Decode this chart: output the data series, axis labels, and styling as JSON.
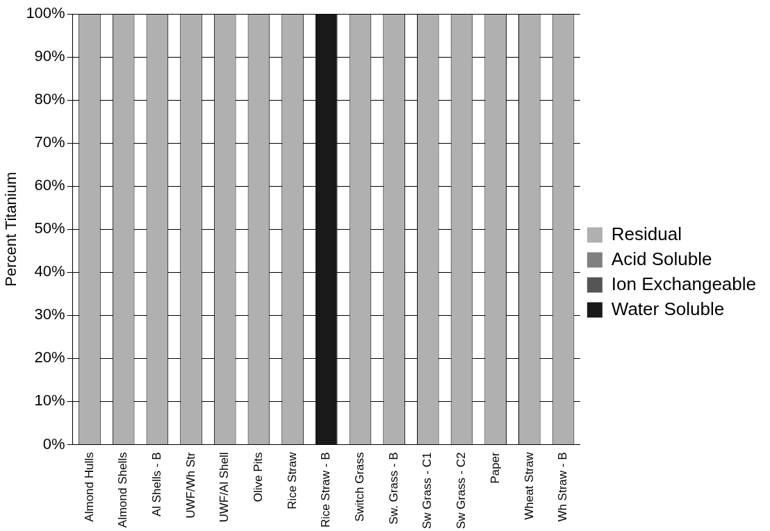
{
  "chart_data": {
    "type": "bar",
    "ylabel": "Percent Titanium",
    "categories": [
      "Almond Hulls",
      "Almond Shells",
      "Al Shells - B",
      "UWF/Wh Str",
      "UWF/Al Shell",
      "Olive Pits",
      "Rice Straw",
      "Rice Straw - B",
      "Switch Grass",
      "Sw. Grass - B",
      "Sw Grass - C1",
      "Sw Grass - C2",
      "Paper",
      "Wheat Straw",
      "Wh Straw - B"
    ],
    "stacked": true,
    "series": [
      {
        "name": "Residual",
        "color": "#b0b0b0",
        "values": [
          100,
          100,
          100,
          100,
          100,
          100,
          100,
          0,
          100,
          100,
          100,
          100,
          100,
          100,
          100
        ]
      },
      {
        "name": "Acid Soluble",
        "color": "#808080",
        "values": [
          0,
          0,
          0,
          0,
          0,
          0,
          0,
          0,
          0,
          0,
          0,
          0,
          0,
          0,
          0
        ]
      },
      {
        "name": "Ion Exchangeable",
        "color": "#555555",
        "values": [
          0,
          0,
          0,
          0,
          0,
          0,
          0,
          0,
          0,
          0,
          0,
          0,
          0,
          0,
          0
        ]
      },
      {
        "name": "Water Soluble",
        "color": "#1a1a1a",
        "values": [
          0,
          0,
          0,
          0,
          0,
          0,
          0,
          100,
          0,
          0,
          0,
          0,
          0,
          0,
          0
        ]
      }
    ],
    "ylim": [
      0,
      100
    ],
    "yticks": [
      {
        "value": 0,
        "label": "0%"
      },
      {
        "value": 10,
        "label": "10%"
      },
      {
        "value": 20,
        "label": "20%"
      },
      {
        "value": 30,
        "label": "30%"
      },
      {
        "value": 40,
        "label": "40%"
      },
      {
        "value": 50,
        "label": "50%"
      },
      {
        "value": 60,
        "label": "60%"
      },
      {
        "value": 70,
        "label": "70%"
      },
      {
        "value": 80,
        "label": "80%"
      },
      {
        "value": 90,
        "label": "90%"
      },
      {
        "value": 100,
        "label": "100%"
      }
    ],
    "grid": "y",
    "legend": "right"
  }
}
